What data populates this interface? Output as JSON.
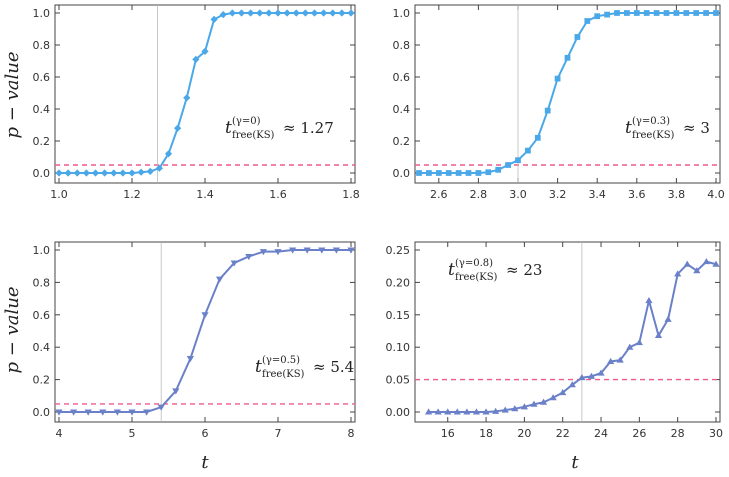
{
  "figure": {
    "ylabel": "p − value",
    "xlabel": "t"
  },
  "chart_data": [
    {
      "type": "line",
      "marker": "diamond",
      "color": "#4aa8e8",
      "xlim": [
        1.0,
        1.8
      ],
      "ylim": [
        0.0,
        1.0
      ],
      "xticks": [
        "1.0",
        "1.2",
        "1.4",
        "1.6",
        "1.8"
      ],
      "yticks": [
        "0.0",
        "0.2",
        "0.4",
        "0.6",
        "0.8",
        "1.0"
      ],
      "threshold": 0.05,
      "vline": 1.27,
      "annotation": {
        "gamma": "(γ=0)",
        "sub": "free(KS)",
        "value": "≈ 1.27"
      },
      "x": [
        1.0,
        1.025,
        1.05,
        1.075,
        1.1,
        1.125,
        1.15,
        1.175,
        1.2,
        1.225,
        1.25,
        1.275,
        1.3,
        1.325,
        1.35,
        1.375,
        1.4,
        1.425,
        1.45,
        1.475,
        1.5,
        1.525,
        1.55,
        1.575,
        1.6,
        1.625,
        1.65,
        1.675,
        1.7,
        1.725,
        1.75,
        1.775,
        1.8
      ],
      "y": [
        0.0,
        0.0,
        0.0,
        0.0,
        0.0,
        0.0,
        0.0,
        0.0,
        0.0,
        0.005,
        0.01,
        0.03,
        0.12,
        0.28,
        0.47,
        0.71,
        0.76,
        0.96,
        0.99,
        1.0,
        1.0,
        1.0,
        1.0,
        1.0,
        1.0,
        1.0,
        1.0,
        1.0,
        1.0,
        1.0,
        1.0,
        1.0,
        1.0
      ]
    },
    {
      "type": "line",
      "marker": "square",
      "color": "#4aa8e8",
      "xlim": [
        2.5,
        4.0
      ],
      "ylim": [
        0.0,
        1.0
      ],
      "xticks": [
        "2.6",
        "2.8",
        "3.0",
        "3.2",
        "3.4",
        "3.6",
        "3.8",
        "4.0"
      ],
      "yticks": [
        "0.0",
        "0.2",
        "0.4",
        "0.6",
        "0.8",
        "1.0"
      ],
      "threshold": 0.05,
      "vline": 3.0,
      "annotation": {
        "gamma": "(γ=0.3)",
        "sub": "free(KS)",
        "value": "≈ 3"
      },
      "x": [
        2.5,
        2.55,
        2.6,
        2.65,
        2.7,
        2.75,
        2.8,
        2.85,
        2.9,
        2.95,
        3.0,
        3.05,
        3.1,
        3.15,
        3.2,
        3.25,
        3.3,
        3.35,
        3.4,
        3.45,
        3.5,
        3.55,
        3.6,
        3.65,
        3.7,
        3.75,
        3.8,
        3.85,
        3.9,
        3.95,
        4.0
      ],
      "y": [
        0.0,
        0.0,
        0.0,
        0.0,
        0.0,
        0.0,
        0.0,
        0.005,
        0.02,
        0.05,
        0.08,
        0.14,
        0.22,
        0.39,
        0.59,
        0.72,
        0.85,
        0.95,
        0.98,
        0.99,
        1.0,
        1.0,
        1.0,
        1.0,
        1.0,
        1.0,
        1.0,
        1.0,
        1.0,
        1.0,
        1.0
      ]
    },
    {
      "type": "line",
      "marker": "triangle-down",
      "color": "#6a80c8",
      "xlim": [
        4.0,
        8.0
      ],
      "ylim": [
        0.0,
        1.0
      ],
      "xticks": [
        "4",
        "5",
        "6",
        "7",
        "8"
      ],
      "yticks": [
        "0.0",
        "0.2",
        "0.4",
        "0.6",
        "0.8",
        "1.0"
      ],
      "threshold": 0.05,
      "vline": 5.4,
      "annotation": {
        "gamma": "(γ=0.5)",
        "sub": "free(KS)",
        "value": "≈ 5.4"
      },
      "x": [
        4.0,
        4.2,
        4.4,
        4.6,
        4.8,
        5.0,
        5.2,
        5.4,
        5.6,
        5.8,
        6.0,
        6.2,
        6.4,
        6.6,
        6.8,
        7.0,
        7.2,
        7.4,
        7.6,
        7.8,
        8.0
      ],
      "y": [
        0.0,
        0.0,
        0.0,
        0.0,
        0.0,
        0.0,
        0.0,
        0.03,
        0.13,
        0.33,
        0.6,
        0.82,
        0.92,
        0.96,
        0.99,
        0.99,
        1.0,
        1.0,
        1.0,
        1.0,
        1.0
      ]
    },
    {
      "type": "line",
      "marker": "triangle-up",
      "color": "#6a80c8",
      "xlim": [
        14.5,
        30.0
      ],
      "ylim": [
        0.0,
        0.25
      ],
      "xticks": [
        "16",
        "18",
        "20",
        "22",
        "24",
        "26",
        "28",
        "30"
      ],
      "yticks": [
        "0.00",
        "0.05",
        "0.10",
        "0.15",
        "0.20",
        "0.25"
      ],
      "threshold": 0.05,
      "vline": 23.0,
      "annotation": {
        "gamma": "(γ=0.8)",
        "sub": "free(KS)",
        "value": "≈ 23"
      },
      "x": [
        15.0,
        15.5,
        16.0,
        16.5,
        17.0,
        17.5,
        18.0,
        18.5,
        19.0,
        19.5,
        20.0,
        20.5,
        21.0,
        21.5,
        22.0,
        22.5,
        23.0,
        23.5,
        24.0,
        24.5,
        25.0,
        25.5,
        26.0,
        26.5,
        27.0,
        27.5,
        28.0,
        28.5,
        29.0,
        29.5,
        30.0
      ],
      "y": [
        0.0,
        0.0,
        0.0,
        0.0,
        0.0,
        0.0,
        0.0,
        0.001,
        0.003,
        0.005,
        0.008,
        0.012,
        0.015,
        0.022,
        0.03,
        0.042,
        0.053,
        0.055,
        0.06,
        0.078,
        0.08,
        0.1,
        0.107,
        0.172,
        0.118,
        0.143,
        0.213,
        0.228,
        0.218,
        0.232,
        0.228
      ]
    }
  ]
}
